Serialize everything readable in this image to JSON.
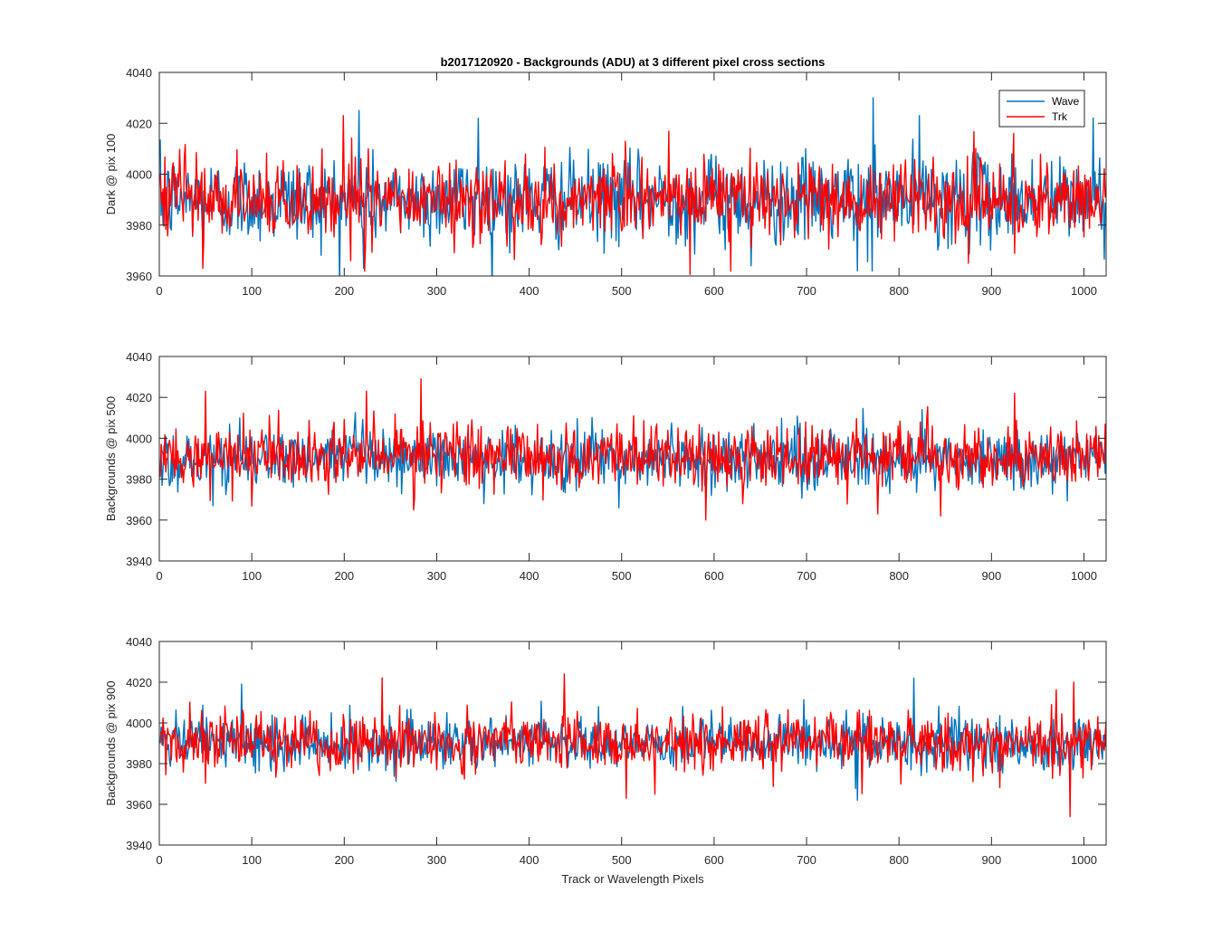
{
  "figure": {
    "title": "b2017120920 - Backgrounds (ADU) at 3 different pixel cross sections",
    "xlabel": "Track or Wavelength Pixels"
  },
  "legend": {
    "placement": "top-right",
    "entries": [
      "Wave",
      "Trk"
    ]
  },
  "colors": {
    "Wave": "#0072BD",
    "Trk": "#FF0000"
  },
  "chart_data": [
    {
      "type": "line",
      "title": "b2017120920 - Backgrounds (ADU) at 3 different pixel cross sections",
      "ylabel": "Dark @ pix 100",
      "xlabel": "",
      "xlim": [
        0,
        1024
      ],
      "ylim": [
        3960,
        4040
      ],
      "xticks": [
        "0",
        "100",
        "200",
        "300",
        "400",
        "500",
        "600",
        "700",
        "800",
        "900",
        "1000"
      ],
      "yticks": [
        "3960",
        "3980",
        "4000",
        "4020",
        "4040"
      ],
      "legend": "top-right",
      "grid": false,
      "x": "1..1024",
      "series": [
        {
          "name": "Wave",
          "color": "#0072BD",
          "mean": 3990,
          "std": 8.5,
          "peaks": [
            [
              216,
              4025
            ],
            [
              345,
              4022
            ],
            [
              772,
              4030
            ],
            [
              822,
              4023
            ],
            [
              1010,
              4022
            ]
          ],
          "dips": [
            [
              221,
              3963
            ],
            [
              755,
              3962
            ],
            [
              771,
              3962
            ],
            [
              640,
              3964
            ]
          ]
        },
        {
          "name": "Trk",
          "color": "#FF0000",
          "mean": 3990,
          "std": 8.0,
          "peaks": [
            [
              199,
              4023
            ],
            [
              924,
              4016
            ]
          ],
          "dips": [
            [
              47,
              3963
            ],
            [
              207,
              3966
            ]
          ]
        }
      ]
    },
    {
      "type": "line",
      "ylabel": "Backgrounds @ pix 500",
      "xlabel": "",
      "xlim": [
        0,
        1024
      ],
      "ylim": [
        3940,
        4040
      ],
      "xticks": [
        "0",
        "100",
        "200",
        "300",
        "400",
        "500",
        "600",
        "700",
        "800",
        "900",
        "1000"
      ],
      "yticks": [
        "3940",
        "3960",
        "3980",
        "4000",
        "4020",
        "4040"
      ],
      "grid": false,
      "x": "1..1024",
      "series": [
        {
          "name": "Wave",
          "color": "#0072BD",
          "mean": 3990,
          "std": 7.5,
          "peaks": [
            [
              825,
              4014
            ]
          ],
          "dips": [
            [
              58,
              3967
            ],
            [
              351,
              3968
            ]
          ]
        },
        {
          "name": "Trk",
          "color": "#FF0000",
          "mean": 3991,
          "std": 8.0,
          "peaks": [
            [
              283,
              4029
            ],
            [
              50,
              4023
            ],
            [
              224,
              4023
            ],
            [
              925,
              4022
            ]
          ],
          "dips": [
            [
              591,
              3960
            ],
            [
              845,
              3962
            ],
            [
              777,
              3963
            ],
            [
              275,
              3965
            ]
          ]
        }
      ]
    },
    {
      "type": "line",
      "ylabel": "Backgrounds @ pix 900",
      "xlabel": "Track or Wavelength Pixels",
      "xlim": [
        0,
        1024
      ],
      "ylim": [
        3940,
        4040
      ],
      "xticks": [
        "0",
        "100",
        "200",
        "300",
        "400",
        "500",
        "600",
        "700",
        "800",
        "900",
        "1000"
      ],
      "yticks": [
        "3940",
        "3960",
        "3980",
        "4000",
        "4020",
        "4040"
      ],
      "grid": false,
      "x": "1..1024",
      "series": [
        {
          "name": "Wave",
          "color": "#0072BD",
          "mean": 3990,
          "std": 6.5,
          "peaks": [
            [
              89,
              4019
            ],
            [
              816,
              4022
            ]
          ],
          "dips": [
            [
              755,
              3962
            ]
          ]
        },
        {
          "name": "Trk",
          "color": "#FF0000",
          "mean": 3991,
          "std": 7.0,
          "peaks": [
            [
              438,
              4024
            ],
            [
              241,
              4022
            ],
            [
              989,
              4020
            ]
          ],
          "dips": [
            [
              985,
              3954
            ],
            [
              505,
              3963
            ],
            [
              536,
              3965
            ]
          ]
        }
      ]
    }
  ]
}
